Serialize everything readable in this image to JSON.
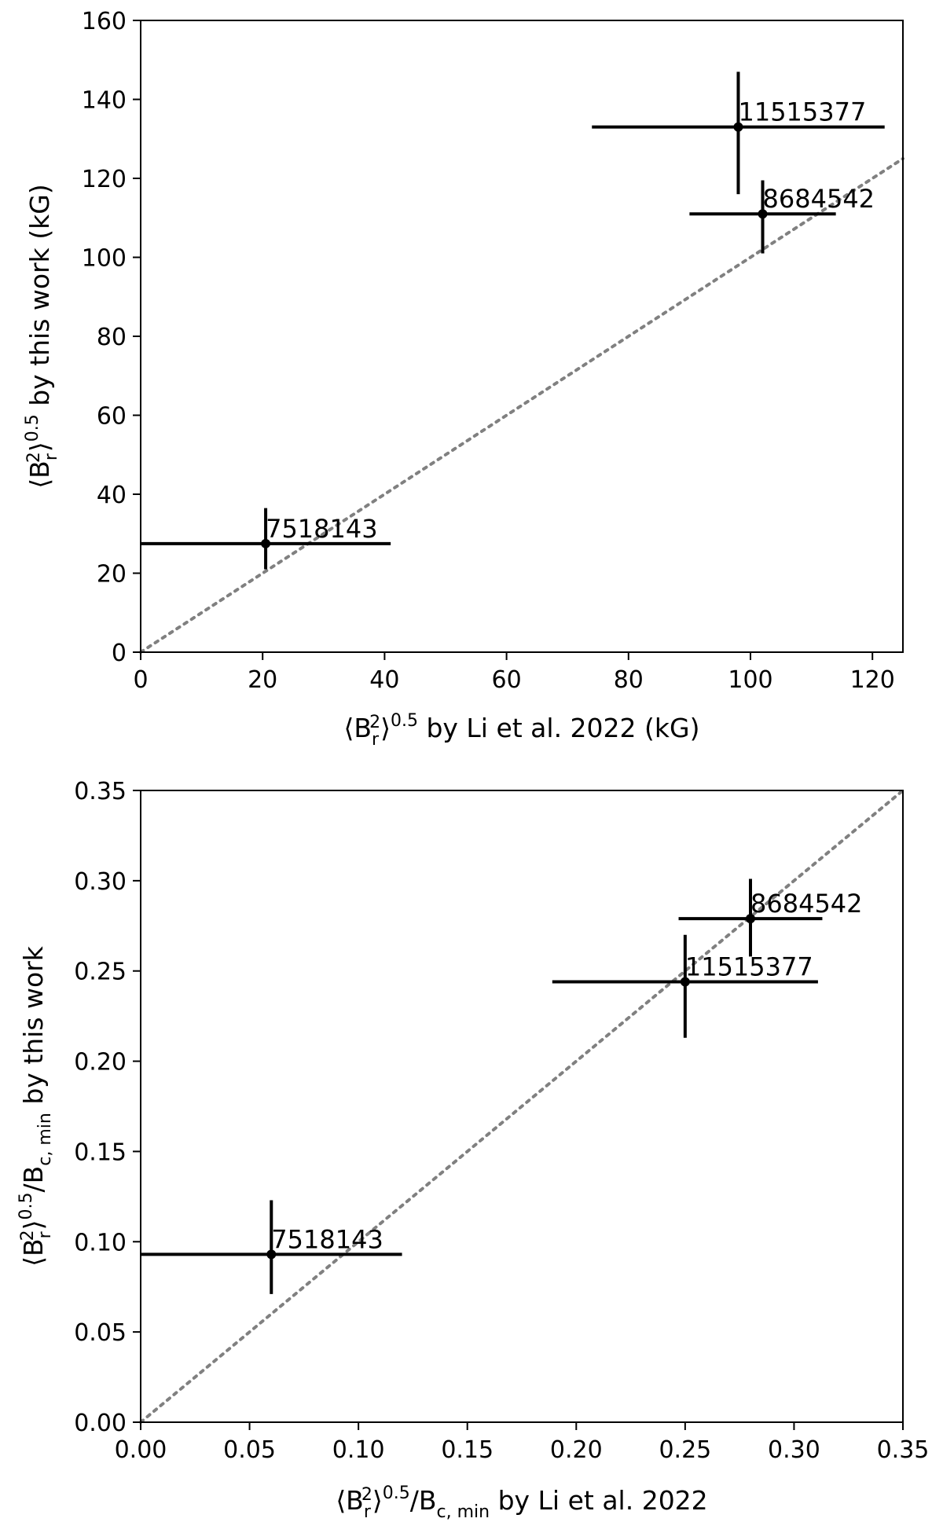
{
  "chart_data": [
    {
      "type": "scatter",
      "xlabel": "⟨B_r^2⟩^0.5 by Li et al. 2022 (kG)",
      "ylabel": "⟨B_r^2⟩^0.5 by this work (kG)",
      "xlim": [
        0,
        125
      ],
      "ylim": [
        0,
        160
      ],
      "xticks": [
        0,
        20,
        40,
        60,
        80,
        100,
        120
      ],
      "yticks": [
        0,
        20,
        40,
        60,
        80,
        100,
        120,
        140,
        160
      ],
      "xtick_labels": [
        "0",
        "20",
        "40",
        "60",
        "80",
        "100",
        "120"
      ],
      "ytick_labels": [
        "0",
        "20",
        "40",
        "60",
        "80",
        "100",
        "120",
        "140",
        "160"
      ],
      "grid": false,
      "reference_line": "y = x (dotted gray)",
      "points": [
        {
          "label": "7518143",
          "x": 20.5,
          "y": 27.5,
          "xerr": [
            20.5,
            20.5
          ],
          "yerr": [
            6.5,
            9.0
          ]
        },
        {
          "label": "11515377",
          "x": 98.0,
          "y": 133.0,
          "xerr": [
            24.0,
            24.0
          ],
          "yerr": [
            17.0,
            14.0
          ]
        },
        {
          "label": "8684542",
          "x": 102.0,
          "y": 111.0,
          "xerr": [
            12.0,
            12.0
          ],
          "yerr": [
            10.0,
            8.5
          ]
        }
      ]
    },
    {
      "type": "scatter",
      "xlabel": "⟨B_r^2⟩^0.5/B_c,min by Li et al. 2022",
      "ylabel": "⟨B_r^2⟩^0.5/B_c,min by this work",
      "xlim": [
        0,
        0.35
      ],
      "ylim": [
        0,
        0.35
      ],
      "xticks": [
        0,
        0.05,
        0.1,
        0.15,
        0.2,
        0.25,
        0.3,
        0.35
      ],
      "yticks": [
        0,
        0.05,
        0.1,
        0.15,
        0.2,
        0.25,
        0.3,
        0.35
      ],
      "xtick_labels": [
        "0.00",
        "0.05",
        "0.10",
        "0.15",
        "0.20",
        "0.25",
        "0.30",
        "0.35"
      ],
      "ytick_labels": [
        "0.00",
        "0.05",
        "0.10",
        "0.15",
        "0.20",
        "0.25",
        "0.30",
        "0.35"
      ],
      "grid": false,
      "reference_line": "y = x (dotted gray)",
      "points": [
        {
          "label": "7518143",
          "x": 0.06,
          "y": 0.093,
          "xerr": [
            0.06,
            0.06
          ],
          "yerr": [
            0.022,
            0.03
          ]
        },
        {
          "label": "11515377",
          "x": 0.25,
          "y": 0.244,
          "xerr": [
            0.061,
            0.061
          ],
          "yerr": [
            0.031,
            0.026
          ]
        },
        {
          "label": "8684542",
          "x": 0.28,
          "y": 0.279,
          "xerr": [
            0.033,
            0.033
          ],
          "yerr": [
            0.021,
            0.022
          ]
        }
      ]
    }
  ],
  "axis_text": {
    "top_x": {
      "pre": "⟨B",
      "sub": "r",
      "sup1": "2",
      "close": "⟩",
      "sup2": "0.5",
      "post": " by Li et al. 2022 (kG)"
    },
    "top_y": {
      "pre": "⟨B",
      "sub": "r",
      "sup1": "2",
      "close": "⟩",
      "sup2": "0.5",
      "post": " by this work (kG)"
    },
    "bottom_x": {
      "pre": "⟨B",
      "sub": "r",
      "sup1": "2",
      "close": "⟩",
      "sup2": "0.5",
      "mid": "/B",
      "sub2": "c, min",
      "post": " by Li et al. 2022"
    },
    "bottom_y": {
      "pre": "⟨B",
      "sub": "r",
      "sup1": "2",
      "close": "⟩",
      "sup2": "0.5",
      "mid": "/B",
      "sub2": "c, min",
      "post": " by this work"
    }
  },
  "colors": {
    "data": "#000000",
    "reference_line": "#808080",
    "axes": "#000000"
  }
}
